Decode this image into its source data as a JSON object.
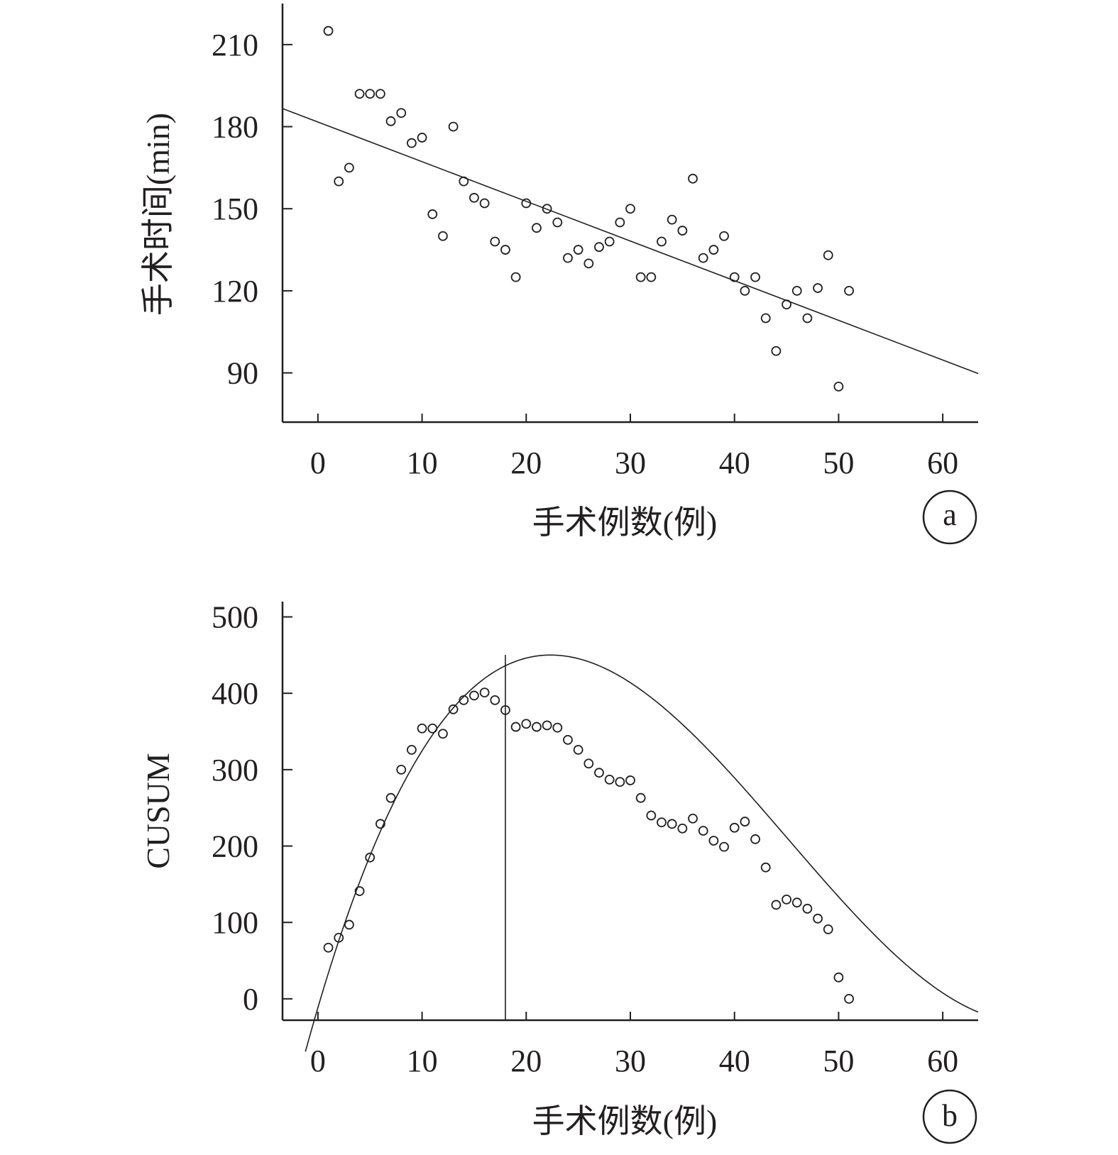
{
  "chart_data": [
    {
      "type": "scatter",
      "panel_label": "a",
      "xlabel": "手术例数(例)",
      "ylabel": "手术时间(min)",
      "xlim": [
        -3.4,
        63.4
      ],
      "ylim": [
        72,
        225
      ],
      "x_ticks": [
        0,
        10,
        20,
        30,
        40,
        50,
        60
      ],
      "y_ticks": [
        90,
        120,
        150,
        180,
        210
      ],
      "grid": false,
      "series": [
        {
          "points": [
            [
              1,
              215
            ],
            [
              2,
              160
            ],
            [
              3,
              165
            ],
            [
              4,
              192
            ],
            [
              5,
              192
            ],
            [
              6,
              192
            ],
            [
              7,
              182
            ],
            [
              8,
              185
            ],
            [
              9,
              174
            ],
            [
              10,
              176
            ],
            [
              11,
              148
            ],
            [
              12,
              140
            ],
            [
              13,
              180
            ],
            [
              14,
              160
            ],
            [
              15,
              154
            ],
            [
              16,
              152
            ],
            [
              17,
              138
            ],
            [
              18,
              135
            ],
            [
              19,
              125
            ],
            [
              20,
              152
            ],
            [
              21,
              143
            ],
            [
              22,
              150
            ],
            [
              23,
              145
            ],
            [
              24,
              132
            ],
            [
              25,
              135
            ],
            [
              26,
              130
            ],
            [
              27,
              136
            ],
            [
              28,
              138
            ],
            [
              29,
              145
            ],
            [
              30,
              150
            ],
            [
              31,
              125
            ],
            [
              32,
              125
            ],
            [
              33,
              138
            ],
            [
              34,
              146
            ],
            [
              35,
              142
            ],
            [
              36,
              161
            ],
            [
              37,
              132
            ],
            [
              38,
              135
            ],
            [
              39,
              140
            ],
            [
              40,
              125
            ],
            [
              41,
              120
            ],
            [
              42,
              125
            ],
            [
              43,
              110
            ],
            [
              44,
              98
            ],
            [
              45,
              115
            ],
            [
              46,
              120
            ],
            [
              47,
              110
            ],
            [
              48,
              121
            ],
            [
              49,
              133
            ],
            [
              50,
              85
            ],
            [
              51,
              120
            ]
          ]
        }
      ],
      "fit_line": {
        "type": "linear",
        "intercept": 181.7,
        "slope": -1.45,
        "x_range": [
          -3.4,
          63.4
        ]
      }
    },
    {
      "type": "scatter",
      "panel_label": "b",
      "xlabel": "手术例数(例)",
      "ylabel": "CUSUM",
      "xlim": [
        -3.4,
        63.4
      ],
      "ylim": [
        -28,
        520
      ],
      "x_ticks": [
        0,
        10,
        20,
        30,
        40,
        50,
        60
      ],
      "y_ticks": [
        0,
        100,
        200,
        300,
        400,
        500
      ],
      "grid": false,
      "vertical_marker_x": 18,
      "series": [
        {
          "points": [
            [
              1,
              67
            ],
            [
              2,
              80
            ],
            [
              3,
              97
            ],
            [
              4,
              141
            ],
            [
              5,
              185
            ],
            [
              6,
              229
            ],
            [
              7,
              263
            ],
            [
              8,
              300
            ],
            [
              9,
              326
            ],
            [
              10,
              354
            ],
            [
              11,
              354
            ],
            [
              12,
              347
            ],
            [
              13,
              379
            ],
            [
              14,
              391
            ],
            [
              15,
              397
            ],
            [
              16,
              401
            ],
            [
              17,
              391
            ],
            [
              18,
              378
            ],
            [
              19,
              356
            ],
            [
              20,
              360
            ],
            [
              21,
              356
            ],
            [
              22,
              358
            ],
            [
              23,
              355
            ],
            [
              24,
              339
            ],
            [
              25,
              326
            ],
            [
              26,
              308
            ],
            [
              27,
              296
            ],
            [
              28,
              287
            ],
            [
              29,
              284
            ],
            [
              30,
              286
            ],
            [
              31,
              263
            ],
            [
              32,
              240
            ],
            [
              33,
              231
            ],
            [
              34,
              229
            ],
            [
              35,
              223
            ],
            [
              36,
              236
            ],
            [
              37,
              220
            ],
            [
              38,
              207
            ],
            [
              39,
              199
            ],
            [
              40,
              224
            ],
            [
              41,
              232
            ],
            [
              42,
              209
            ],
            [
              43,
              172
            ],
            [
              44,
              123
            ],
            [
              45,
              130
            ],
            [
              46,
              126
            ],
            [
              47,
              118
            ],
            [
              48,
              105
            ],
            [
              49,
              91
            ],
            [
              50,
              28
            ],
            [
              51,
              0
            ]
          ]
        }
      ],
      "fit_curve": {
        "type": "polynomial",
        "coefficients": [
          -11.5,
          46.4,
          -1.38,
          0.0102
        ],
        "x_range": [
          -1.2,
          63.4
        ]
      }
    }
  ],
  "colors": {
    "ink": "#231f20",
    "background": "#ffffff"
  }
}
